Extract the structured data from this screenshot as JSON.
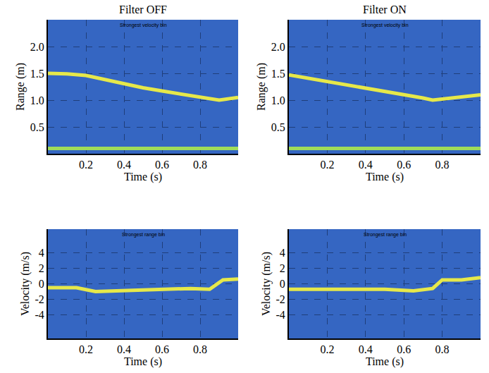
{
  "chart_data": [
    {
      "type": "line",
      "title": "Filter OFF",
      "subtitle": "Strongest velocity bin",
      "x_label": "Time (s)",
      "y_label": "Range (m)",
      "xlim": [
        0,
        1
      ],
      "xticks": [
        0.2,
        0.4,
        0.6,
        0.8
      ],
      "ylim": [
        0,
        2.5
      ],
      "yticks": [
        0.5,
        {
          "value": 1.0,
          "label": "1.0"
        },
        1.5,
        {
          "value": 2.0,
          "label": "2.0"
        }
      ],
      "grid": true,
      "x": [
        0,
        0.1,
        0.2,
        0.3,
        0.4,
        0.5,
        0.6,
        0.7,
        0.8,
        0.9,
        1.0
      ],
      "series": [
        {
          "color": "#e6e84a",
          "values": [
            1.5,
            1.49,
            1.46,
            1.38,
            1.3,
            1.23,
            1.17,
            1.11,
            1.05,
            1.0,
            1.05
          ]
        },
        {
          "color": "#9fdc5a",
          "values": [
            0.1,
            0.1,
            0.1,
            0.1,
            0.1,
            0.1,
            0.1,
            0.1,
            0.1,
            0.1,
            0.1
          ]
        }
      ]
    },
    {
      "type": "line",
      "title": "Filter ON",
      "subtitle": "Strongest velocity bin",
      "x_label": "Time (s)",
      "y_label": "Range (m)",
      "xlim": [
        0,
        1
      ],
      "xticks": [
        0.2,
        0.4,
        0.6,
        0.8
      ],
      "ylim": [
        0,
        2.5
      ],
      "yticks": [
        0.5,
        {
          "value": 1.0,
          "label": "1.0"
        },
        1.5,
        {
          "value": 2.0,
          "label": "2.0"
        }
      ],
      "grid": true,
      "x": [
        0,
        0.1,
        0.2,
        0.3,
        0.4,
        0.5,
        0.6,
        0.7,
        0.75,
        0.8,
        0.9,
        1.0
      ],
      "series": [
        {
          "color": "#e6e84a",
          "values": [
            1.47,
            1.41,
            1.35,
            1.29,
            1.23,
            1.17,
            1.1,
            1.04,
            1.0,
            1.02,
            1.06,
            1.1
          ]
        },
        {
          "color": "#9fdc5a",
          "values": [
            0.1,
            0.1,
            0.1,
            0.1,
            0.1,
            0.1,
            0.1,
            0.1,
            0.1,
            0.1,
            0.1,
            0.1
          ]
        }
      ]
    },
    {
      "type": "line",
      "subtitle": "Strongest range bin",
      "x_label": "Time (s)",
      "y_label": "Velocity (m/s)",
      "xlim": [
        0,
        1
      ],
      "xticks": [
        0.2,
        0.4,
        0.6,
        0.8
      ],
      "ylim": [
        -7,
        7
      ],
      "yticks": [
        -4,
        -2,
        0,
        2,
        4
      ],
      "grid": true,
      "x": [
        0,
        0.15,
        0.25,
        0.5,
        0.75,
        0.85,
        0.92,
        1.0
      ],
      "series": [
        {
          "color": "#e6e84a",
          "values": [
            -0.5,
            -0.5,
            -1.0,
            -0.8,
            -0.6,
            -0.7,
            0.5,
            0.6
          ]
        }
      ]
    },
    {
      "type": "line",
      "subtitle": "Strongest range bin",
      "x_label": "Time (s)",
      "y_label": "Velocity (m/s)",
      "xlim": [
        0,
        1
      ],
      "xticks": [
        0.2,
        0.4,
        0.6,
        0.8
      ],
      "ylim": [
        -7,
        7
      ],
      "yticks": [
        -4,
        -2,
        0,
        2,
        4
      ],
      "grid": true,
      "x": [
        0,
        0.5,
        0.65,
        0.75,
        0.8,
        0.9,
        1.0
      ],
      "series": [
        {
          "color": "#e6e84a",
          "values": [
            -0.7,
            -0.7,
            -0.9,
            -0.6,
            0.5,
            0.5,
            0.8
          ]
        }
      ]
    }
  ]
}
